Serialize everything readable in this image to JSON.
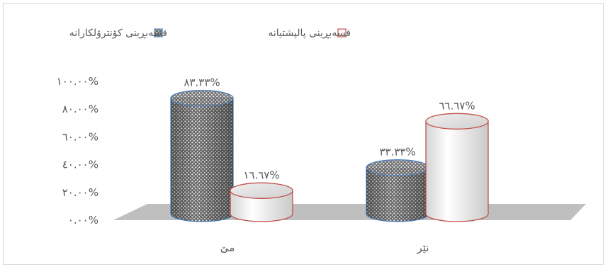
{
  "chart_data": {
    "type": "bar",
    "style": "3d-cylinder",
    "categories": [
      "مێ",
      "نێر"
    ],
    "series": [
      {
        "name": "قسەبڕینی کۆنترۆلکارانە",
        "values": [
          83.33,
          33.33
        ],
        "value_labels": [
          "٨٣.٣٣%",
          "٣٣.٣٣%"
        ],
        "pattern": "dotted-dark"
      },
      {
        "name": "قسەبڕینی پالپشتیانە",
        "values": [
          16.67,
          66.67
        ],
        "value_labels": [
          "١٦.٦٧%",
          "٦٦.٦٧%"
        ],
        "pattern": "white-gradient"
      }
    ],
    "y_ticks": [
      "٠.٠٠%",
      "٢٠.٠٠%",
      "٤٠.٠٠%",
      "٦٠.٠٠%",
      "٨٠.٠٠%",
      "١٠٠.٠٠%"
    ],
    "ylim": [
      0,
      100
    ],
    "legend": "top",
    "grid": false,
    "colors": {
      "series1_edge": "#4f81bd",
      "series2_edge": "#c0504d",
      "floor": "#bfbfbf",
      "text": "#595959"
    }
  }
}
